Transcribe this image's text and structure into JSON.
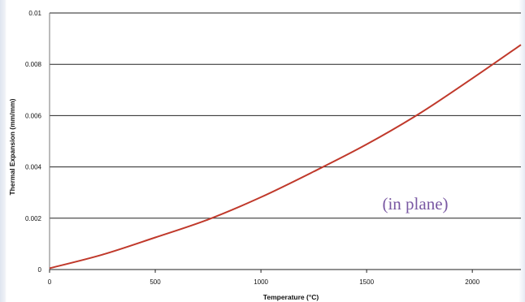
{
  "chart_data": {
    "type": "line",
    "xlabel": "Temperature (°C)",
    "ylabel": "Thermal Expansion (mm/mm)",
    "annotation": "(in plane)",
    "xlim": [
      0,
      2230
    ],
    "ylim": [
      0,
      0.01
    ],
    "x_ticks": [
      0,
      500,
      1000,
      1500,
      2000
    ],
    "y_ticks": [
      0,
      0.002,
      0.004,
      0.006,
      0.008,
      0.01
    ],
    "y_tick_labels": [
      "0",
      "0.002",
      "0.004",
      "0.006",
      "0.008",
      "0.01"
    ],
    "grid": "horizontal",
    "series": [
      {
        "color": "#c0392b",
        "x": [
          0,
          250,
          500,
          750,
          1000,
          1250,
          1500,
          1750,
          2000,
          2230
        ],
        "y": [
          5e-05,
          0.00058,
          0.00125,
          0.00195,
          0.00282,
          0.00382,
          0.00488,
          0.00608,
          0.00745,
          0.00876
        ]
      }
    ]
  }
}
